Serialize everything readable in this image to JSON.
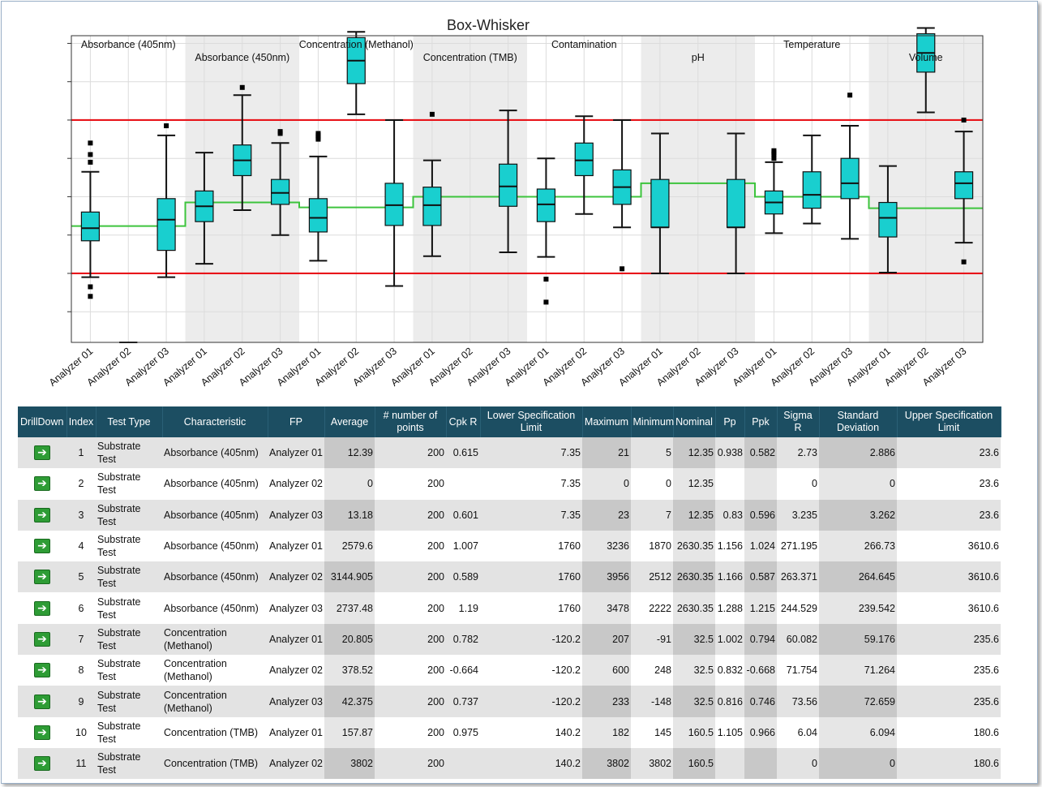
{
  "chart_data": {
    "type": "box",
    "title": "Box-Whisker",
    "y_range": [
      -18,
      62
    ],
    "y_ticks": [
      -10,
      0,
      10,
      20,
      30,
      40,
      50,
      60
    ],
    "lsl": 0,
    "usl": 40,
    "groups": [
      {
        "name": "Absorbance (405nm)",
        "label_row": 0,
        "shaded": false,
        "nominal": 12.35
      },
      {
        "name": "Absorbance (450nm)",
        "label_row": 1,
        "shaded": true,
        "nominal": 18.5
      },
      {
        "name": "Concentration (Methanol)",
        "label_row": 0,
        "shaded": false,
        "nominal": 17.2
      },
      {
        "name": "Concentration (TMB)",
        "label_row": 1,
        "shaded": true,
        "nominal": 20
      },
      {
        "name": "Contamination",
        "label_row": 0,
        "shaded": false,
        "nominal": 20
      },
      {
        "name": "pH",
        "label_row": 1,
        "shaded": true,
        "nominal": 23.5
      },
      {
        "name": "Temperature",
        "label_row": 0,
        "shaded": false,
        "nominal": 20
      },
      {
        "name": "Volume",
        "label_row": 1,
        "shaded": true,
        "nominal": 17
      }
    ],
    "categories": [
      "Analyzer 01",
      "Analyzer 02",
      "Analyzer 03"
    ],
    "boxes": [
      {
        "group": 0,
        "cat": 0,
        "min": -1,
        "q1": 8.5,
        "median": 11.8,
        "q3": 16,
        "max": 26.5,
        "outliers": [
          34,
          31,
          29,
          -3.5,
          -6
        ]
      },
      {
        "group": 0,
        "cat": 1,
        "min": -18,
        "q1": -18,
        "median": -18,
        "q3": -18,
        "max": -18,
        "outliers": []
      },
      {
        "group": 0,
        "cat": 2,
        "min": -1,
        "q1": 6,
        "median": 14,
        "q3": 19.5,
        "max": 36,
        "outliers": [
          38.5
        ]
      },
      {
        "group": 1,
        "cat": 0,
        "min": 2.5,
        "q1": 13.5,
        "median": 17.5,
        "q3": 21.5,
        "max": 31.5,
        "outliers": []
      },
      {
        "group": 1,
        "cat": 1,
        "min": 16.5,
        "q1": 25.5,
        "median": 29.5,
        "q3": 33.5,
        "max": 46.5,
        "outliers": [
          48.5
        ]
      },
      {
        "group": 1,
        "cat": 2,
        "min": 10,
        "q1": 18,
        "median": 21,
        "q3": 24.5,
        "max": 34,
        "outliers": [
          37,
          36.5
        ]
      },
      {
        "group": 2,
        "cat": 0,
        "min": 3.3,
        "q1": 10.8,
        "median": 14.5,
        "q3": 19.5,
        "max": 30.5,
        "outliers": [
          35.5,
          36,
          36.5,
          35
        ]
      },
      {
        "group": 2,
        "cat": 1,
        "min": 41.5,
        "q1": 49.5,
        "median": 55.5,
        "q3": 61.5,
        "max": 63,
        "outliers": []
      },
      {
        "group": 2,
        "cat": 2,
        "min": -3.3,
        "q1": 12.5,
        "median": 17.8,
        "q3": 23.5,
        "max": 40,
        "outliers": []
      },
      {
        "group": 3,
        "cat": 0,
        "min": 4.5,
        "q1": 12.5,
        "median": 17.8,
        "q3": 22.5,
        "max": 29.5,
        "outliers": [
          41.5
        ]
      },
      {
        "group": 3,
        "cat": 2,
        "min": 5.5,
        "q1": 17.5,
        "median": 22.7,
        "q3": 28.5,
        "max": 42.5,
        "outliers": []
      },
      {
        "group": 4,
        "cat": 0,
        "min": 4.3,
        "q1": 13.5,
        "median": 18,
        "q3": 22,
        "max": 30,
        "outliers": [
          -1.5,
          -7.5
        ]
      },
      {
        "group": 4,
        "cat": 1,
        "min": 15.5,
        "q1": 25.5,
        "median": 29.5,
        "q3": 34,
        "max": 41,
        "outliers": []
      },
      {
        "group": 4,
        "cat": 2,
        "min": 12,
        "q1": 18,
        "median": 22.5,
        "q3": 27,
        "max": 40,
        "outliers": [
          1.2
        ]
      },
      {
        "group": 5,
        "cat": 0,
        "min": 0,
        "q1": 12,
        "median": 12,
        "q3": 24.5,
        "max": 36.5,
        "outliers": []
      },
      {
        "group": 5,
        "cat": 2,
        "min": 0,
        "q1": 12,
        "median": 12,
        "q3": 24.5,
        "max": 36.5,
        "outliers": []
      },
      {
        "group": 6,
        "cat": 0,
        "min": 10.5,
        "q1": 15.5,
        "median": 18.5,
        "q3": 21.5,
        "max": 29,
        "outliers": [
          30,
          31,
          31.5,
          32
        ]
      },
      {
        "group": 6,
        "cat": 1,
        "min": 13,
        "q1": 17,
        "median": 20.5,
        "q3": 26.5,
        "max": 36,
        "outliers": []
      },
      {
        "group": 6,
        "cat": 2,
        "min": 9,
        "q1": 19.5,
        "median": 23.5,
        "q3": 30,
        "max": 38.5,
        "outliers": [
          46.5
        ]
      },
      {
        "group": 7,
        "cat": 0,
        "min": 0.2,
        "q1": 9.5,
        "median": 14.5,
        "q3": 18.5,
        "max": 28,
        "outliers": []
      },
      {
        "group": 7,
        "cat": 1,
        "min": 42,
        "q1": 52.5,
        "median": 57.5,
        "q3": 62.5,
        "max": 64,
        "outliers": []
      },
      {
        "group": 7,
        "cat": 2,
        "min": 8,
        "q1": 19.5,
        "median": 23.5,
        "q3": 26.5,
        "max": 37,
        "outliers": [
          40,
          3
        ]
      }
    ]
  },
  "table": {
    "columns": [
      "DrillDown",
      "Index",
      "Test Type",
      "Characteristic",
      "FP",
      "Average",
      "# number of points",
      "Cpk R",
      "Lower Specification Limit",
      "Maximum",
      "Minimum",
      "Nominal",
      "Pp",
      "Ppk",
      "Sigma R",
      "Standard Deviation",
      "Upper Specification Limit"
    ],
    "drilldown_icon": "arrow-right-icon",
    "rows": [
      [
        "1",
        "Substrate Test",
        "Absorbance (405nm)",
        "Analyzer 01",
        "12.39",
        "200",
        "0.615",
        "7.35",
        "21",
        "5",
        "12.35",
        "0.938",
        "0.582",
        "2.73",
        "2.886",
        "23.6"
      ],
      [
        "2",
        "Substrate Test",
        "Absorbance (405nm)",
        "Analyzer 02",
        "0",
        "200",
        "",
        "7.35",
        "0",
        "0",
        "12.35",
        "",
        "",
        "0",
        "0",
        "23.6"
      ],
      [
        "3",
        "Substrate Test",
        "Absorbance (405nm)",
        "Analyzer 03",
        "13.18",
        "200",
        "0.601",
        "7.35",
        "23",
        "7",
        "12.35",
        "0.83",
        "0.596",
        "3.235",
        "3.262",
        "23.6"
      ],
      [
        "4",
        "Substrate Test",
        "Absorbance (450nm)",
        "Analyzer 01",
        "2579.6",
        "200",
        "1.007",
        "1760",
        "3236",
        "1870",
        "2630.35",
        "1.156",
        "1.024",
        "271.195",
        "266.73",
        "3610.6"
      ],
      [
        "5",
        "Substrate Test",
        "Absorbance (450nm)",
        "Analyzer 02",
        "3144.905",
        "200",
        "0.589",
        "1760",
        "3956",
        "2512",
        "2630.35",
        "1.166",
        "0.587",
        "263.371",
        "264.645",
        "3610.6"
      ],
      [
        "6",
        "Substrate Test",
        "Absorbance (450nm)",
        "Analyzer 03",
        "2737.48",
        "200",
        "1.19",
        "1760",
        "3478",
        "2222",
        "2630.35",
        "1.288",
        "1.215",
        "244.529",
        "239.542",
        "3610.6"
      ],
      [
        "7",
        "Substrate Test",
        "Concentration (Methanol)",
        "Analyzer 01",
        "20.805",
        "200",
        "0.782",
        "-120.2",
        "207",
        "-91",
        "32.5",
        "1.002",
        "0.794",
        "60.082",
        "59.176",
        "235.6"
      ],
      [
        "8",
        "Substrate Test",
        "Concentration (Methanol)",
        "Analyzer 02",
        "378.52",
        "200",
        "-0.664",
        "-120.2",
        "600",
        "248",
        "32.5",
        "0.832",
        "-0.668",
        "71.754",
        "71.264",
        "235.6"
      ],
      [
        "9",
        "Substrate Test",
        "Concentration (Methanol)",
        "Analyzer 03",
        "42.375",
        "200",
        "0.737",
        "-120.2",
        "233",
        "-148",
        "32.5",
        "0.816",
        "0.746",
        "73.56",
        "72.659",
        "235.6"
      ],
      [
        "10",
        "Substrate Test",
        "Concentration (TMB)",
        "Analyzer 01",
        "157.87",
        "200",
        "0.975",
        "140.2",
        "182",
        "145",
        "160.5",
        "1.105",
        "0.966",
        "6.04",
        "6.094",
        "180.6"
      ],
      [
        "11",
        "Substrate Test",
        "Concentration (TMB)",
        "Analyzer 02",
        "3802",
        "200",
        "",
        "140.2",
        "3802",
        "3802",
        "160.5",
        "",
        "",
        "0",
        "0",
        "180.6"
      ]
    ]
  }
}
